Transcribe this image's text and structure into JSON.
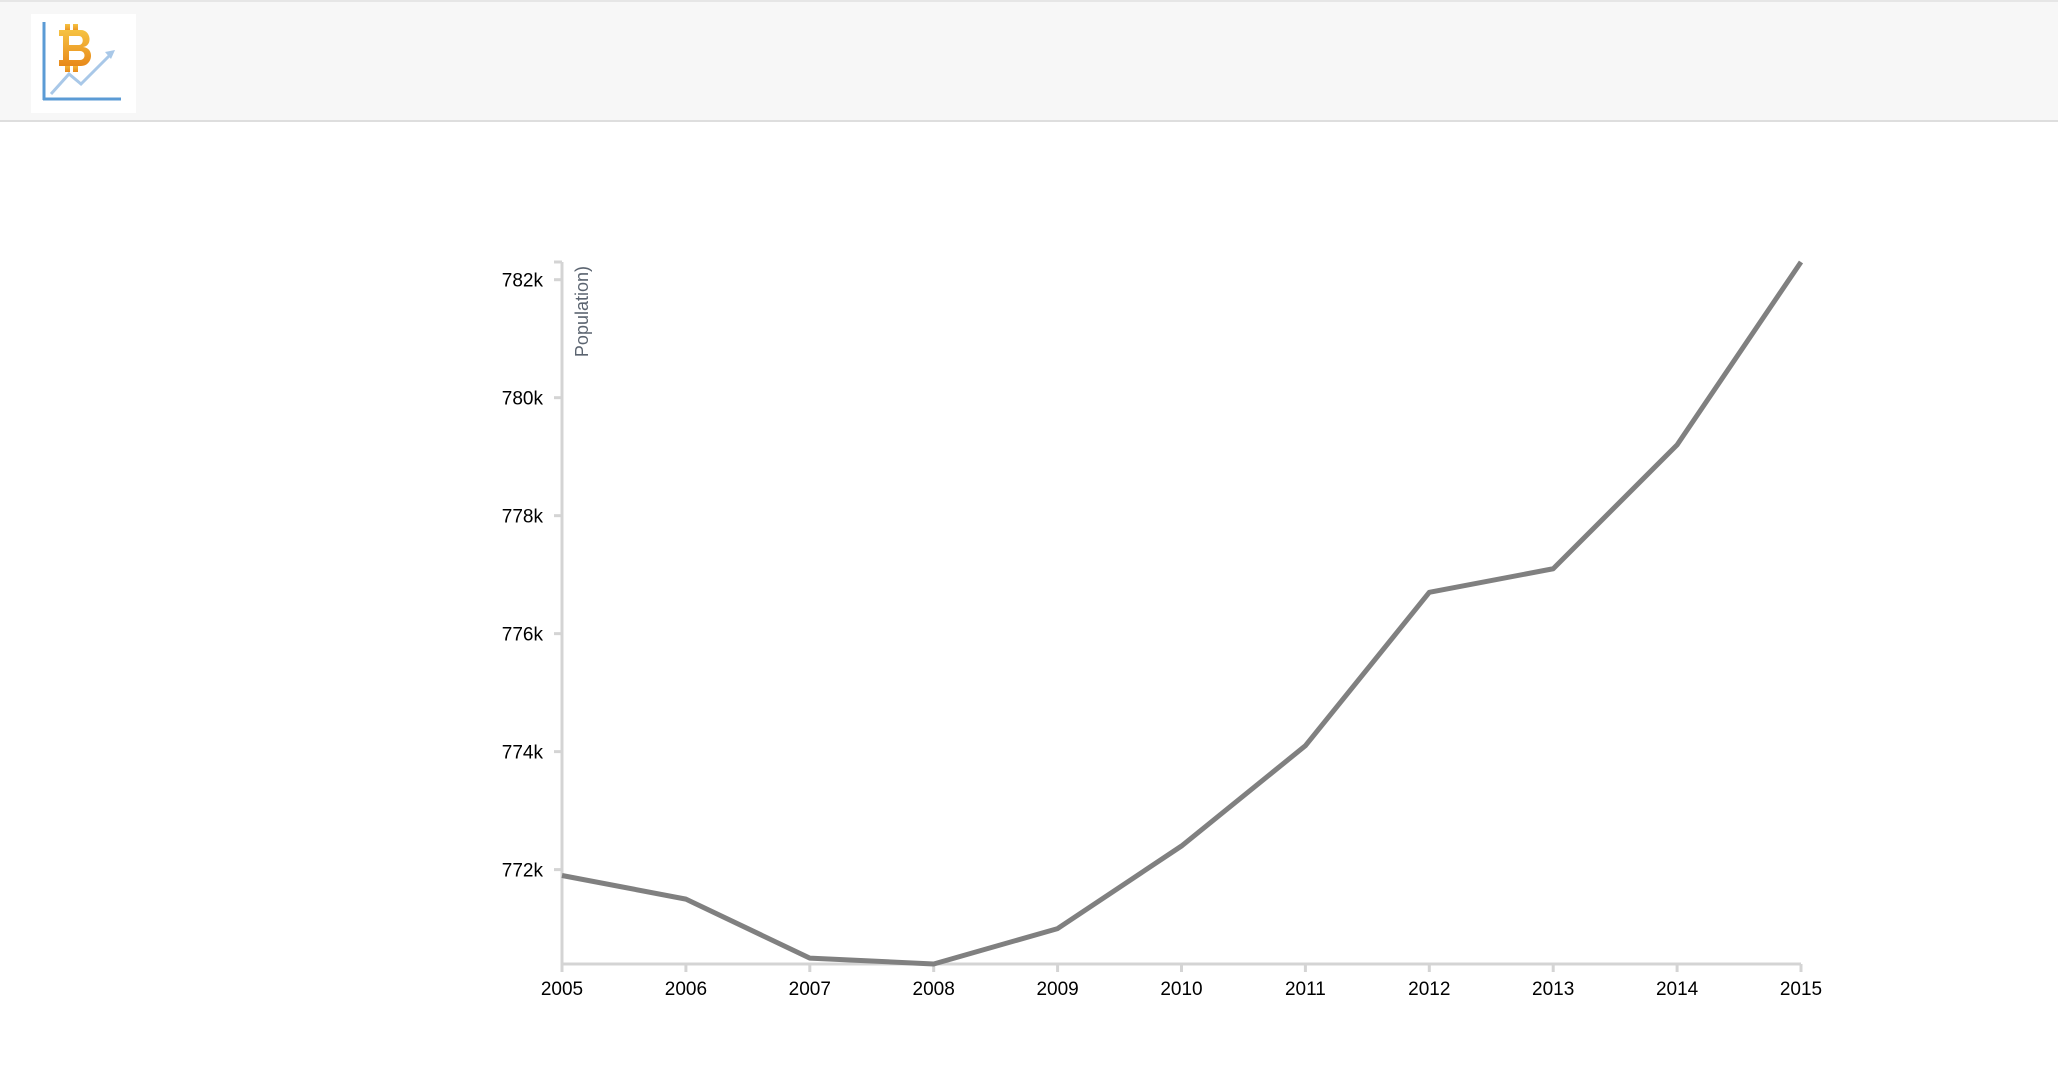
{
  "header": {
    "logo_icon": "bitcoin-chart-logo-icon"
  },
  "colors": {
    "line": "#808080",
    "axis": "#d4d4d4",
    "header_bg": "#f7f7f7",
    "logo_gold": "#f2a91e",
    "logo_blue": "#5b9bd5"
  },
  "chart_data": {
    "type": "line",
    "title": "",
    "xlabel": "",
    "ylabel": "Population)",
    "x": [
      2005,
      2006,
      2007,
      2008,
      2009,
      2010,
      2011,
      2012,
      2013,
      2014,
      2015
    ],
    "series": [
      {
        "values": [
          771900,
          771500,
          770500,
          770400,
          771000,
          772400,
          774100,
          776700,
          777100,
          779200,
          782300
        ]
      }
    ],
    "x_ticks": [
      "2005",
      "2006",
      "2007",
      "2008",
      "2009",
      "2010",
      "2011",
      "2012",
      "2013",
      "2014",
      "2015"
    ],
    "y_ticks": [
      772000,
      774000,
      776000,
      778000,
      780000,
      782000
    ],
    "y_tick_labels": [
      "772k",
      "774k",
      "776k",
      "778k",
      "780k",
      "782k"
    ],
    "xlim": [
      2005,
      2015
    ],
    "ylim": [
      770400,
      782300
    ],
    "grid": false,
    "legend": "none"
  }
}
